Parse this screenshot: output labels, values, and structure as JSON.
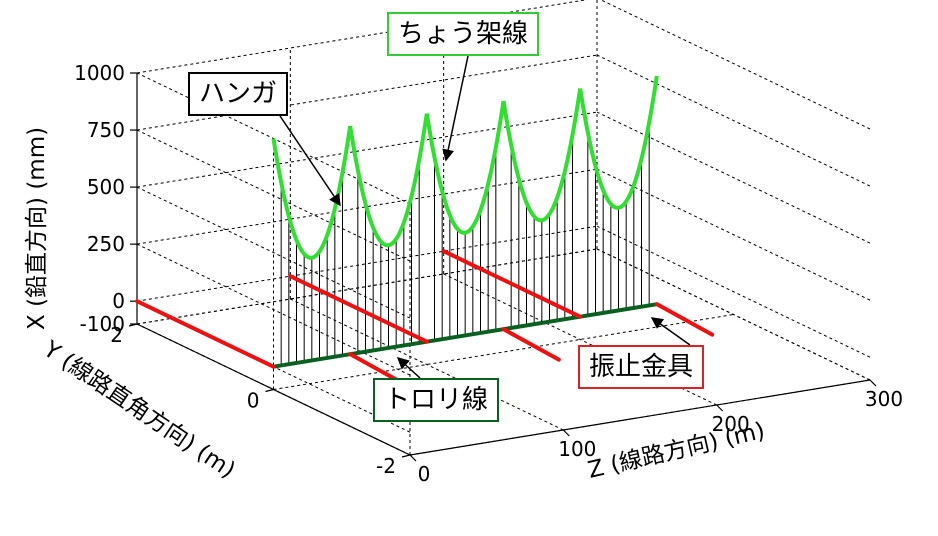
{
  "chart_data": {
    "type": "line",
    "title": "",
    "xlabel": "Z (線路方向) (m)",
    "ylabel": "Y (線路直角方向) (m)",
    "zlabel": "X (鉛直方向) (mm)",
    "xlim": [
      0,
      300
    ],
    "ylim": [
      -2,
      2
    ],
    "zlim": [
      -100,
      1000
    ],
    "x_ticks": [
      "0",
      "100",
      "200",
      "300"
    ],
    "y_ticks": [
      "-2",
      "0",
      "2"
    ],
    "z_ticks": [
      "-100",
      "0",
      "250",
      "500",
      "750",
      "1000"
    ],
    "grid": true,
    "spans": [
      {
        "z_start": 0,
        "z_end": 50
      },
      {
        "z_start": 50,
        "z_end": 100
      },
      {
        "z_start": 100,
        "z_end": 150
      },
      {
        "z_start": 150,
        "z_end": 200
      },
      {
        "z_start": 200,
        "z_end": 250
      }
    ],
    "series": [
      {
        "name": "ちょう架線",
        "color": "#33dd33",
        "sag_mm": 550
      },
      {
        "name": "ハンガ",
        "color": "#000000"
      },
      {
        "name": "トロリ線",
        "color": "#0a6020"
      },
      {
        "name": "振止金具",
        "color": "#ee1111",
        "y_range_m": [
          0,
          2
        ]
      }
    ],
    "annotations": [
      {
        "text": "ハンガ",
        "border": "#000000"
      },
      {
        "text": "ちょう架線",
        "border": "#33cc33"
      },
      {
        "text": "振止金具",
        "border": "#dd2222"
      },
      {
        "text": "トロリ線",
        "border": "#0a6020"
      }
    ]
  }
}
